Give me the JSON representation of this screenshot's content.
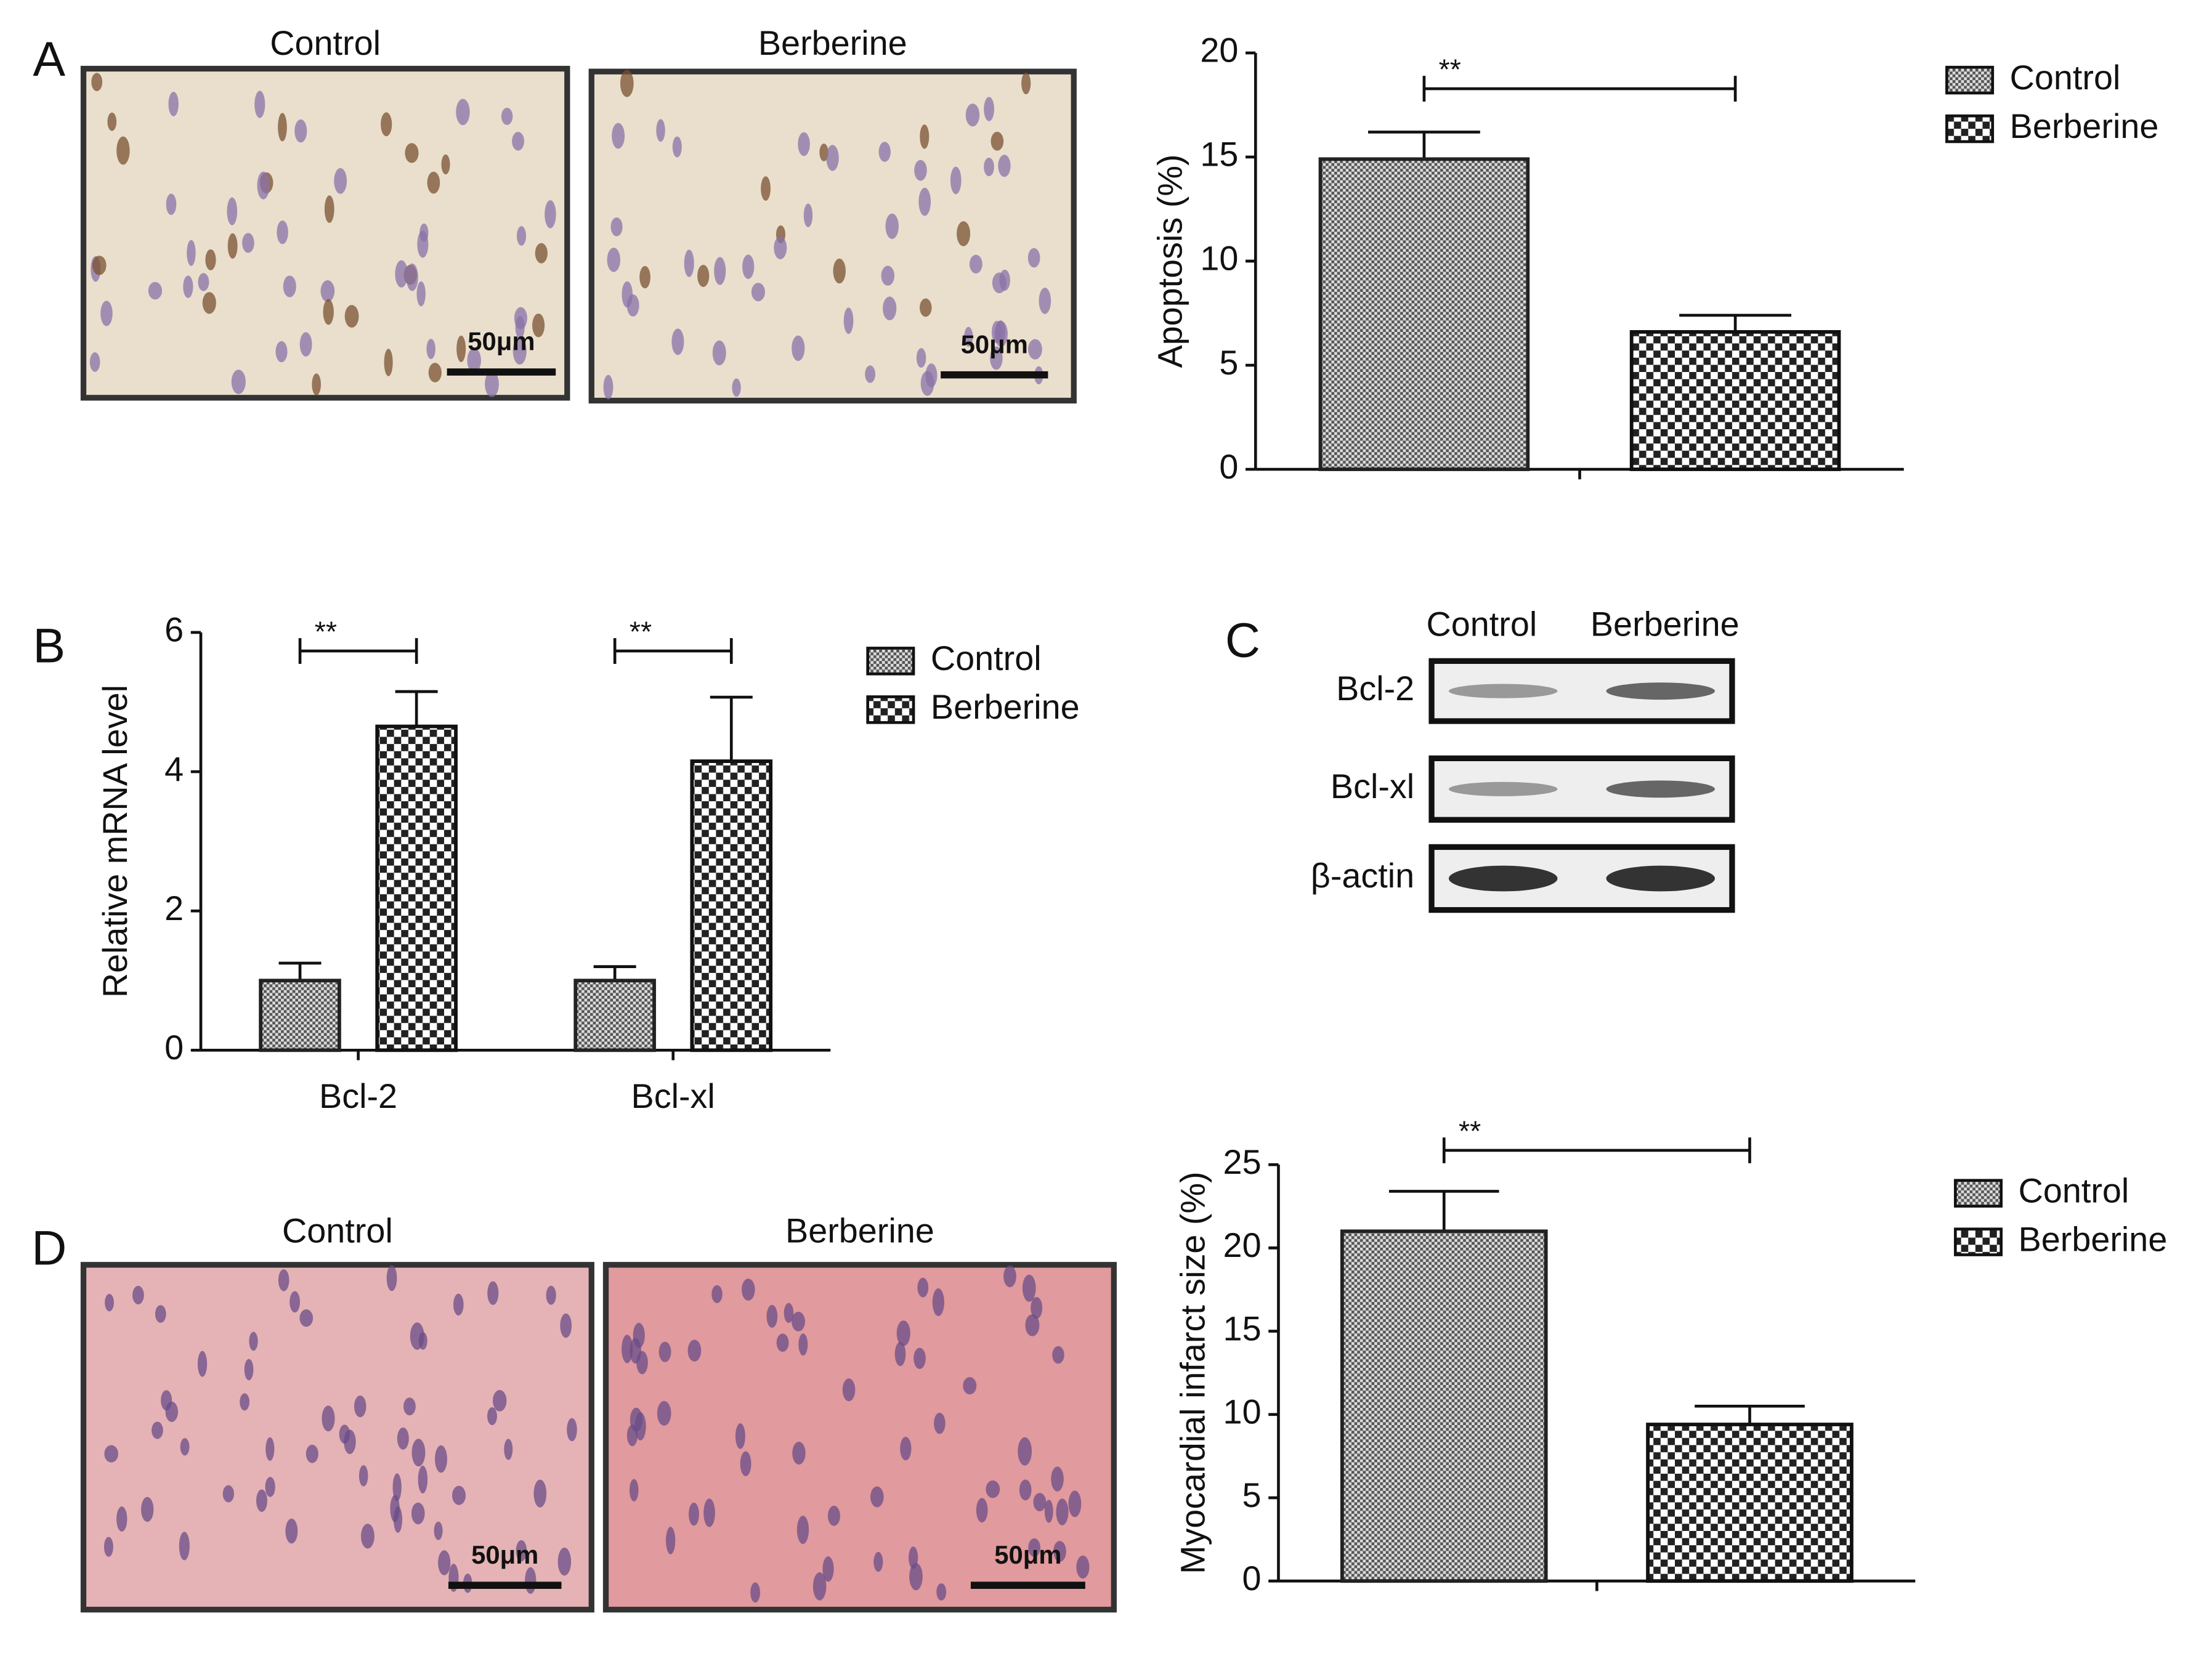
{
  "panel_labels": [
    "A",
    "B",
    "C",
    "D"
  ],
  "micrographs": [
    {
      "titles": [
        "Control",
        "Berberine"
      ],
      "scale_labels": [
        "50μm",
        "50μm"
      ]
    },
    {
      "titles": [
        "Control",
        "Berberine"
      ],
      "scale_labels": [
        "50μm",
        "50μm"
      ]
    }
  ],
  "blot": {
    "columns": [
      "Control",
      "Berberine"
    ],
    "rows": [
      "Bcl-2",
      "Bcl-xl",
      "β-actin"
    ]
  },
  "chart_data": [
    {
      "type": "bar",
      "y_label": "Apoptosis (%)",
      "categories": [
        null
      ],
      "series": [
        {
          "name": "Control",
          "pattern": "fine",
          "color": "#555555",
          "values": [
            14.9
          ],
          "errors": [
            1.3
          ]
        },
        {
          "name": "Berberine",
          "pattern": "coarse",
          "color": "#222222",
          "values": [
            6.6
          ],
          "errors": [
            0.8
          ]
        }
      ],
      "annotations": [
        "**"
      ],
      "ylim": [
        0,
        20
      ],
      "yticks": [
        0,
        5,
        10,
        15,
        20
      ]
    },
    {
      "type": "bar",
      "y_label": "Relative mRNA level",
      "categories": [
        "Bcl-2",
        "Bcl-xl"
      ],
      "series": [
        {
          "name": "Control",
          "pattern": "fine",
          "color": "#555555",
          "values": [
            1.0,
            1.0
          ],
          "errors": [
            0.25,
            0.2
          ]
        },
        {
          "name": "Berberine",
          "pattern": "coarse",
          "color": "#222222",
          "values": [
            4.65,
            4.15
          ],
          "errors": [
            0.5,
            0.92
          ]
        }
      ],
      "annotations": [
        "**",
        "**"
      ],
      "ylim": [
        0,
        6
      ],
      "yticks": [
        0,
        2,
        4,
        6
      ]
    },
    {
      "type": "bar",
      "y_label": "Myocardial infarct size (%)",
      "categories": [
        null
      ],
      "series": [
        {
          "name": "Control",
          "pattern": "fine",
          "color": "#555555",
          "values": [
            21.0
          ],
          "errors": [
            2.4
          ]
        },
        {
          "name": "Berberine",
          "pattern": "coarse",
          "color": "#222222",
          "values": [
            9.4
          ],
          "errors": [
            1.1
          ]
        }
      ],
      "annotations": [
        "**"
      ],
      "ylim": [
        0,
        25
      ],
      "yticks": [
        0,
        5,
        10,
        15,
        20,
        25
      ]
    }
  ]
}
